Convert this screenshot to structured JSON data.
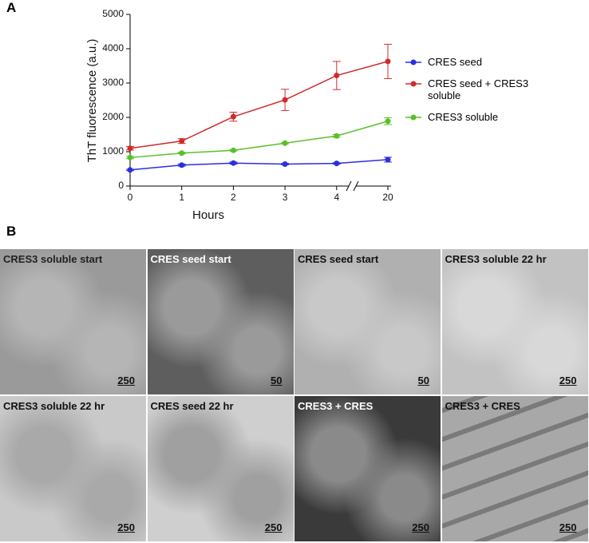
{
  "panel_labels": [
    "A",
    "B"
  ],
  "chart_data": {
    "type": "line",
    "x_label": "Hours",
    "y_label": "ThT fluorescence  (a.u.)",
    "categories": [
      "0",
      "1",
      "2",
      "3",
      "4",
      "20"
    ],
    "ylim": [
      0,
      5000
    ],
    "yticks": [
      0,
      1000,
      2000,
      3000,
      4000,
      5000
    ],
    "grid": false,
    "legend": "right",
    "series": [
      {
        "name": "CRES seed",
        "color": "#2b2fe0",
        "values": [
          470,
          610,
          670,
          640,
          660,
          770
        ],
        "errors": [
          20,
          30,
          30,
          20,
          20,
          70
        ]
      },
      {
        "name": "CRES seed + CRES3 soluble",
        "color": "#d12b2b",
        "values": [
          1100,
          1310,
          2020,
          2510,
          3220,
          3630
        ],
        "errors": [
          50,
          70,
          130,
          310,
          410,
          500
        ]
      },
      {
        "name": "CRES3 soluble",
        "color": "#5cbf2a",
        "values": [
          830,
          960,
          1040,
          1250,
          1460,
          1890
        ],
        "errors": [
          30,
          20,
          20,
          20,
          40,
          100
        ]
      }
    ]
  },
  "micrographs": [
    {
      "caption": "CRES3 soluble start",
      "scale": "250"
    },
    {
      "caption": "CRES seed start",
      "scale": "50"
    },
    {
      "caption": "CRES seed start",
      "scale": "50"
    },
    {
      "caption": "CRES3 soluble 22 hr",
      "scale": "250"
    },
    {
      "caption": "CRES3 soluble 22 hr",
      "scale": "250"
    },
    {
      "caption": "CRES seed 22 hr",
      "scale": "250"
    },
    {
      "caption": "CRES3 + CRES",
      "scale": "250"
    },
    {
      "caption": "CRES3 + CRES",
      "scale": "250"
    }
  ]
}
